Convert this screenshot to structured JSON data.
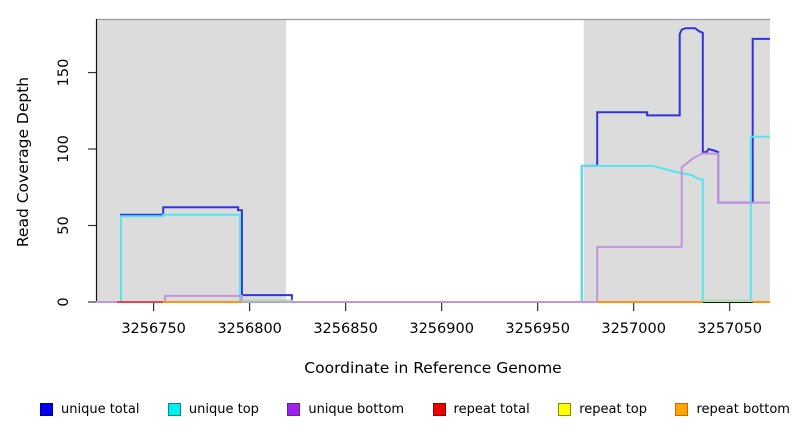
{
  "chart_data": {
    "type": "line",
    "title": "",
    "xlabel": "Coordinate in Reference Genome",
    "ylabel": "Read Coverage Depth",
    "xlim": [
      3256720,
      3257071
    ],
    "ylim": [
      0,
      185
    ],
    "grid": false,
    "legend_position": "bottom",
    "x_ticks": [
      {
        "value": 3256750,
        "label": "3256750"
      },
      {
        "value": 3256800,
        "label": "3256800"
      },
      {
        "value": 3256850,
        "label": "3256850"
      },
      {
        "value": 3256900,
        "label": "3256900"
      },
      {
        "value": 3256950,
        "label": "3256950"
      },
      {
        "value": 3257000,
        "label": "3257000"
      },
      {
        "value": 3257050,
        "label": "3257050"
      }
    ],
    "y_ticks": [
      {
        "value": 0,
        "label": "0"
      },
      {
        "value": 50,
        "label": "50"
      },
      {
        "value": 100,
        "label": "100"
      },
      {
        "value": 150,
        "label": "150"
      }
    ],
    "regions": [
      {
        "name": "repeat-region-left",
        "x1": 3256720,
        "x2": 3256819,
        "fill": "#dcdcdc"
      },
      {
        "name": "unique-gap-region",
        "x1": 3256819,
        "x2": 3256974,
        "fill": "#ffffff"
      },
      {
        "name": "repeat-region-right",
        "x1": 3256974,
        "x2": 3257071,
        "fill": "#dcdcdc"
      }
    ],
    "region_border_color": "#9a9a9a",
    "series": [
      {
        "name": "unique total",
        "color": "#3333dd",
        "paths": [
          [
            [
              3256720,
              0
            ],
            [
              3256733,
              0
            ],
            [
              3256733,
              57
            ],
            [
              3256755,
              57
            ],
            [
              3256755,
              62
            ],
            [
              3256794,
              62
            ],
            [
              3256794,
              60
            ],
            [
              3256796,
              60
            ],
            [
              3256796,
              4.5
            ],
            [
              3256822,
              4.5
            ],
            [
              3256822,
              0
            ],
            [
              3256973,
              0
            ],
            [
              3256973,
              89
            ],
            [
              3256981,
              89
            ],
            [
              3256981,
              124
            ],
            [
              3257007,
              124
            ],
            [
              3257007,
              122
            ],
            [
              3257024,
              122
            ],
            [
              3257024,
              175
            ],
            [
              3257025,
              178
            ],
            [
              3257027,
              179
            ],
            [
              3257032,
              179
            ],
            [
              3257034,
              177
            ],
            [
              3257036,
              176
            ],
            [
              3257036,
              98
            ],
            [
              3257038,
              98
            ],
            [
              3257039,
              100
            ],
            [
              3257042,
              99
            ],
            [
              3257044,
              98
            ],
            [
              3257044,
              65
            ],
            [
              3257062,
              65
            ],
            [
              3257062,
              172
            ],
            [
              3257071,
              172
            ]
          ]
        ]
      },
      {
        "name": "unique top",
        "color": "#55e5ee",
        "paths": [
          [
            [
              3256720,
              0
            ],
            [
              3256733,
              0
            ],
            [
              3256733,
              56
            ],
            [
              3256755,
              56
            ],
            [
              3256755,
              57
            ],
            [
              3256795,
              57
            ],
            [
              3256795,
              1
            ],
            [
              3256822,
              1
            ],
            [
              3256822,
              0
            ],
            [
              3256973,
              0
            ],
            [
              3256973,
              89
            ],
            [
              3257010,
              89
            ],
            [
              3257013,
              88
            ],
            [
              3257016,
              87
            ],
            [
              3257019,
              86
            ],
            [
              3257022,
              85
            ],
            [
              3257026,
              84
            ],
            [
              3257030,
              83
            ],
            [
              3257033,
              81
            ],
            [
              3257035,
              80
            ],
            [
              3257036,
              80
            ],
            [
              3257036,
              1
            ],
            [
              3257061,
              1
            ],
            [
              3257061,
              108
            ],
            [
              3257071,
              108
            ]
          ]
        ]
      },
      {
        "name": "unique bottom",
        "color": "#c394e0",
        "paths": [
          [
            [
              3256720,
              0
            ],
            [
              3256756,
              0
            ],
            [
              3256756,
              4
            ],
            [
              3256796,
              4
            ],
            [
              3256796,
              0
            ],
            [
              3256981,
              0
            ],
            [
              3256981,
              36
            ],
            [
              3257025,
              36
            ],
            [
              3257025,
              88
            ],
            [
              3257028,
              91
            ],
            [
              3257031,
              94
            ],
            [
              3257034,
              96
            ],
            [
              3257036,
              97
            ],
            [
              3257044,
              97
            ],
            [
              3257044,
              65
            ],
            [
              3257071,
              65
            ]
          ]
        ]
      },
      {
        "name": "repeat total",
        "color": "#e0485a",
        "paths": [
          [
            [
              3256731,
              0
            ],
            [
              3256755,
              0
            ]
          ]
        ]
      },
      {
        "name": "repeat top",
        "color": "#a8dca8",
        "paths": [
          [
            [
              3256796,
              1
            ],
            [
              3256822,
              1
            ]
          ],
          [
            [
              3257036,
              1
            ],
            [
              3257062,
              1
            ]
          ]
        ]
      },
      {
        "name": "repeat bottom",
        "color": "#ff9414",
        "paths": [
          [
            [
              3256755,
              0
            ],
            [
              3256796,
              0
            ]
          ],
          [
            [
              3256981,
              0
            ],
            [
              3257036,
              0
            ]
          ],
          [
            [
              3257062,
              0
            ],
            [
              3257071,
              0
            ]
          ]
        ]
      }
    ],
    "legend": [
      {
        "label": "unique total",
        "fill": "#0000ee",
        "border": "#00008b"
      },
      {
        "label": "unique top",
        "fill": "#00eeee",
        "border": "#008b8b"
      },
      {
        "label": "unique bottom",
        "fill": "#a020f0",
        "border": "#68228b"
      },
      {
        "label": "repeat total",
        "fill": "#ee0000",
        "border": "#8b0000"
      },
      {
        "label": "repeat top",
        "fill": "#ffff00",
        "border": "#8b8b00"
      },
      {
        "label": "repeat bottom",
        "fill": "#ffa500",
        "border": "#cd6600"
      }
    ]
  }
}
